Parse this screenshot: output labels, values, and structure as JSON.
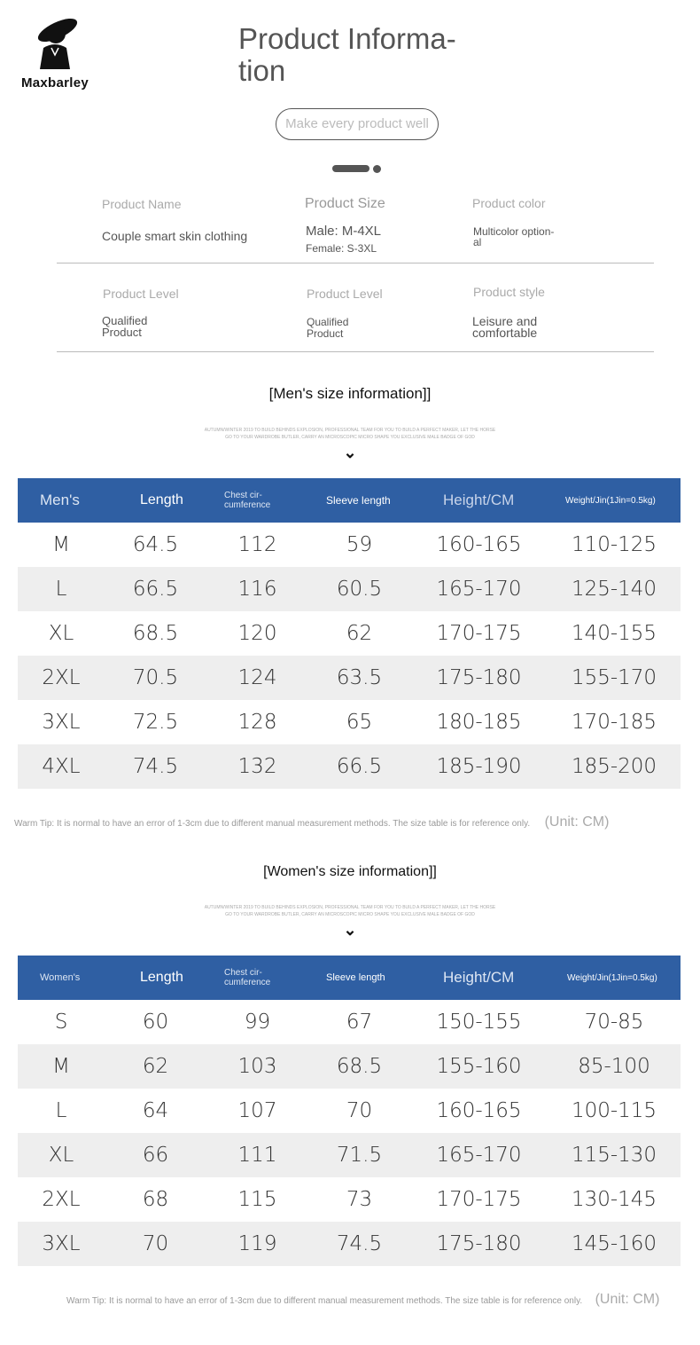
{
  "brand": {
    "name": "Maxbarley"
  },
  "header": {
    "title": "Product Informa- tion",
    "tagline": "Make every product well"
  },
  "info": [
    {
      "label": "Product Name",
      "value": "Couple smart skin clothing"
    },
    {
      "label": "Product Size",
      "value": "Male: M-4XL",
      "value2": "Female: S-3XL"
    },
    {
      "label": "Product color",
      "value": "Multicolor option- al"
    },
    {
      "label": "Product Level",
      "value": "Qualified Product"
    },
    {
      "label": "Product Level",
      "value": "Qualified Product"
    },
    {
      "label": "Product style",
      "value": "Leisure and comfortable"
    }
  ],
  "fine_print": [
    "AUTUMN/WINTER 2019 TO BUILD BEHINDS EXPLOSION, PROFESSIONAL TEAM FOR YOU TO BUILD A PERFECT MAKER, LET THE HORSE",
    "GO TO YOUR WARDROBE BUTLER, CARRY AN MICROSCOPIC MICRO SHAPE YOU EXCLUSIVE MALE BADGE OF GOD"
  ],
  "men": {
    "section_title": "[Men's size information]]",
    "headers": [
      "Men's",
      "Length",
      "Chest cir- cumference",
      "Sleeve length",
      "Height/CM",
      "Weight/Jin(1Jin=0.5kg)"
    ],
    "rows": [
      [
        "M",
        "64.5",
        "112",
        "59",
        "160-165",
        "110-125"
      ],
      [
        "L",
        "66.5",
        "116",
        "60.5",
        "165-170",
        "125-140"
      ],
      [
        "XL",
        "68.5",
        "120",
        "62",
        "170-175",
        "140-155"
      ],
      [
        "2XL",
        "70.5",
        "124",
        "63.5",
        "175-180",
        "155-170"
      ],
      [
        "3XL",
        "72.5",
        "128",
        "65",
        "180-185",
        "170-185"
      ],
      [
        "4XL",
        "74.5",
        "132",
        "66.5",
        "185-190",
        "185-200"
      ]
    ],
    "tip": "Warm Tip: It is normal to have an error of 1-3cm due to different manual measurement methods. The size table is for reference only.",
    "unit": "(Unit: CM)"
  },
  "women": {
    "section_title": "[Women's size information]]",
    "headers": [
      "Women's",
      "Length",
      "Chest cir- cumference",
      "Sleeve length",
      "Height/CM",
      "Weight/Jin(1Jin=0.5kg)"
    ],
    "rows": [
      [
        "S",
        "60",
        "99",
        "67",
        "150-155",
        "70-85"
      ],
      [
        "M",
        "62",
        "103",
        "68.5",
        "155-160",
        "85-100"
      ],
      [
        "L",
        "64",
        "107",
        "70",
        "160-165",
        "100-115"
      ],
      [
        "XL",
        "66",
        "111",
        "71.5",
        "165-170",
        "115-130"
      ],
      [
        "2XL",
        "68",
        "115",
        "73",
        "170-175",
        "130-145"
      ],
      [
        "3XL",
        "70",
        "119",
        "74.5",
        "175-180",
        "145-160"
      ]
    ],
    "tip": "Warm Tip: It is normal to have an error of 1-3cm due to different manual measurement methods. The size table is for reference only.",
    "unit": "(Unit: CM)"
  },
  "colors": {
    "header_bg": "#2f5fa3",
    "row_alt": "#eeeeee"
  }
}
